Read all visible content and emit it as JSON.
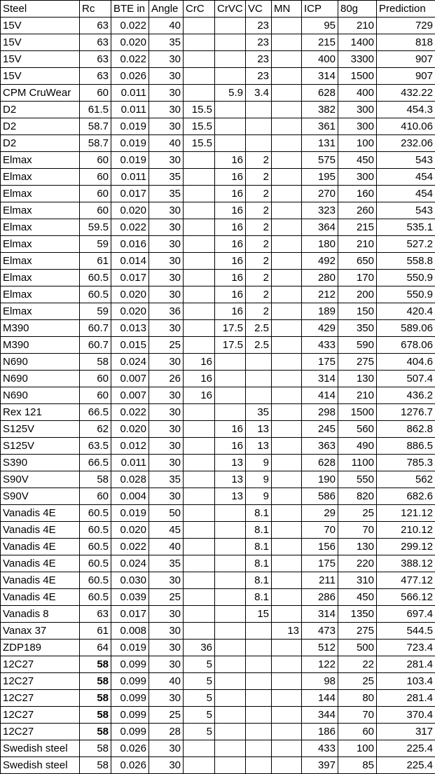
{
  "columns": [
    "Steel",
    "Rc",
    "BTE in",
    "Angle",
    "CrC",
    "CrVC",
    "VC",
    "MN",
    "ICP",
    "80g",
    "Prediction"
  ],
  "rows": [
    [
      "15V",
      "63",
      "0.022",
      "40",
      "",
      "",
      "23",
      "",
      "95",
      "210",
      "729"
    ],
    [
      "15V",
      "63",
      "0.020",
      "35",
      "",
      "",
      "23",
      "",
      "215",
      "1400",
      "818"
    ],
    [
      "15V",
      "63",
      "0.022",
      "30",
      "",
      "",
      "23",
      "",
      "400",
      "3300",
      "907"
    ],
    [
      "15V",
      "63",
      "0.026",
      "30",
      "",
      "",
      "23",
      "",
      "314",
      "1500",
      "907"
    ],
    [
      "CPM CruWear",
      "60",
      "0.011",
      "30",
      "",
      "5.9",
      "3.4",
      "",
      "628",
      "400",
      "432.22"
    ],
    [
      "D2",
      "61.5",
      "0.011",
      "30",
      "15.5",
      "",
      "",
      "",
      "382",
      "300",
      "454.3"
    ],
    [
      "D2",
      "58.7",
      "0.019",
      "30",
      "15.5",
      "",
      "",
      "",
      "361",
      "300",
      "410.06"
    ],
    [
      "D2",
      "58.7",
      "0.019",
      "40",
      "15.5",
      "",
      "",
      "",
      "131",
      "100",
      "232.06"
    ],
    [
      "Elmax",
      "60",
      "0.019",
      "30",
      "",
      "16",
      "2",
      "",
      "575",
      "450",
      "543"
    ],
    [
      "Elmax",
      "60",
      "0.011",
      "35",
      "",
      "16",
      "2",
      "",
      "195",
      "300",
      "454"
    ],
    [
      "Elmax",
      "60",
      "0.017",
      "35",
      "",
      "16",
      "2",
      "",
      "270",
      "160",
      "454"
    ],
    [
      "Elmax",
      "60",
      "0.020",
      "30",
      "",
      "16",
      "2",
      "",
      "323",
      "260",
      "543"
    ],
    [
      "Elmax",
      "59.5",
      "0.022",
      "30",
      "",
      "16",
      "2",
      "",
      "364",
      "215",
      "535.1"
    ],
    [
      "Elmax",
      "59",
      "0.016",
      "30",
      "",
      "16",
      "2",
      "",
      "180",
      "210",
      "527.2"
    ],
    [
      "Elmax",
      "61",
      "0.014",
      "30",
      "",
      "16",
      "2",
      "",
      "492",
      "650",
      "558.8"
    ],
    [
      "Elmax",
      "60.5",
      "0.017",
      "30",
      "",
      "16",
      "2",
      "",
      "280",
      "170",
      "550.9"
    ],
    [
      "Elmax",
      "60.5",
      "0.020",
      "30",
      "",
      "16",
      "2",
      "",
      "212",
      "200",
      "550.9"
    ],
    [
      "Elmax",
      "59",
      "0.020",
      "36",
      "",
      "16",
      "2",
      "",
      "189",
      "150",
      "420.4"
    ],
    [
      "M390",
      "60.7",
      "0.013",
      "30",
      "",
      "17.5",
      "2.5",
      "",
      "429",
      "350",
      "589.06"
    ],
    [
      "M390",
      "60.7",
      "0.015",
      "25",
      "",
      "17.5",
      "2.5",
      "",
      "433",
      "590",
      "678.06"
    ],
    [
      "N690",
      "58",
      "0.024",
      "30",
      "16",
      "",
      "",
      "",
      "175",
      "275",
      "404.6"
    ],
    [
      "N690",
      "60",
      "0.007",
      "26",
      "16",
      "",
      "",
      "",
      "314",
      "130",
      "507.4"
    ],
    [
      "N690",
      "60",
      "0.007",
      "30",
      "16",
      "",
      "",
      "",
      "414",
      "210",
      "436.2"
    ],
    [
      "Rex 121",
      "66.5",
      "0.022",
      "30",
      "",
      "",
      "35",
      "",
      "298",
      "1500",
      "1276.7"
    ],
    [
      "S125V",
      "62",
      "0.020",
      "30",
      "",
      "16",
      "13",
      "",
      "245",
      "560",
      "862.8"
    ],
    [
      "S125V",
      "63.5",
      "0.012",
      "30",
      "",
      "16",
      "13",
      "",
      "363",
      "490",
      "886.5"
    ],
    [
      "S390",
      "66.5",
      "0.011",
      "30",
      "",
      "13",
      "9",
      "",
      "628",
      "1100",
      "785.3"
    ],
    [
      "S90V",
      "58",
      "0.028",
      "35",
      "",
      "13",
      "9",
      "",
      "190",
      "550",
      "562"
    ],
    [
      "S90V",
      "60",
      "0.004",
      "30",
      "",
      "13",
      "9",
      "",
      "586",
      "820",
      "682.6"
    ],
    [
      "Vanadis 4E",
      "60.5",
      "0.019",
      "50",
      "",
      "",
      "8.1",
      "",
      "29",
      "25",
      "121.12"
    ],
    [
      "Vanadis 4E",
      "60.5",
      "0.020",
      "45",
      "",
      "",
      "8.1",
      "",
      "70",
      "70",
      "210.12"
    ],
    [
      "Vanadis 4E",
      "60.5",
      "0.022",
      "40",
      "",
      "",
      "8.1",
      "",
      "156",
      "130",
      "299.12"
    ],
    [
      "Vanadis 4E",
      "60.5",
      "0.024",
      "35",
      "",
      "",
      "8.1",
      "",
      "175",
      "220",
      "388.12"
    ],
    [
      "Vanadis 4E",
      "60.5",
      "0.030",
      "30",
      "",
      "",
      "8.1",
      "",
      "211",
      "310",
      "477.12"
    ],
    [
      "Vanadis 4E",
      "60.5",
      "0.039",
      "25",
      "",
      "",
      "8.1",
      "",
      "286",
      "450",
      "566.12"
    ],
    [
      "Vanadis 8",
      "63",
      "0.017",
      "30",
      "",
      "",
      "15",
      "",
      "314",
      "1350",
      "697.4"
    ],
    [
      "Vanax 37",
      "61",
      "0.008",
      "30",
      "",
      "",
      "",
      "13",
      "473",
      "275",
      "544.5"
    ],
    [
      "ZDP189",
      "64",
      "0.019",
      "30",
      "36",
      "",
      "",
      "",
      "512",
      "500",
      "723.4"
    ],
    [
      "12C27",
      "58",
      "0.099",
      "30",
      "5",
      "",
      "",
      "",
      "122",
      "22",
      "281.4"
    ],
    [
      "12C27",
      "58",
      "0.099",
      "40",
      "5",
      "",
      "",
      "",
      "98",
      "25",
      "103.4"
    ],
    [
      "12C27",
      "58",
      "0.099",
      "30",
      "5",
      "",
      "",
      "",
      "144",
      "80",
      "281.4"
    ],
    [
      "12C27",
      "58",
      "0.099",
      "25",
      "5",
      "",
      "",
      "",
      "344",
      "70",
      "370.4"
    ],
    [
      "12C27",
      "58",
      "0.099",
      "28",
      "5",
      "",
      "",
      "",
      "186",
      "60",
      "317"
    ],
    [
      "Swedish steel",
      "58",
      "0.026",
      "30",
      "",
      "",
      "",
      "",
      "433",
      "100",
      "225.4"
    ],
    [
      "Swedish steel",
      "58",
      "0.026",
      "30",
      "",
      "",
      "",
      "",
      "397",
      "85",
      "225.4"
    ]
  ],
  "bold_rc_rows": [
    38,
    39,
    40,
    41,
    42
  ]
}
